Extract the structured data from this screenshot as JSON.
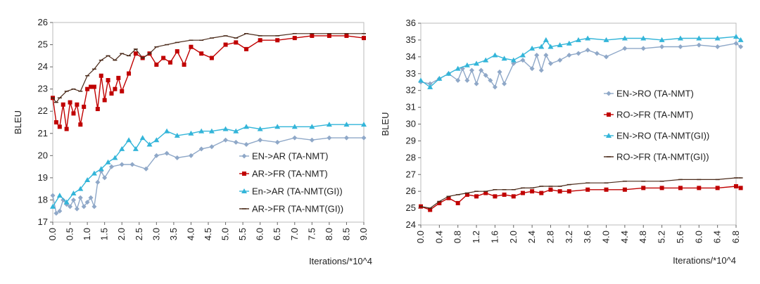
{
  "chart_data": [
    {
      "type": "line",
      "xlabel": "Iterations/*10^4",
      "ylabel": "BLEU",
      "ylim": [
        17,
        26
      ],
      "xlim": [
        0,
        9
      ],
      "xticks": [
        "0.0",
        "0.5",
        "1.0",
        "1.5",
        "2.0",
        "2.5",
        "3.0",
        "3.5",
        "4.0",
        "4.5",
        "5.0",
        "5.5",
        "6.0",
        "6.5",
        "7.0",
        "7.5",
        "8.0",
        "8.5",
        "9.0"
      ],
      "yticks": [
        "17",
        "18",
        "19",
        "20",
        "21",
        "22",
        "23",
        "24",
        "25",
        "26"
      ],
      "legend_position": "bottom-right",
      "grid": false,
      "series": [
        {
          "name": "EN->AR (TA-NMT)",
          "color": "#8fa8c8",
          "marker": "diamond",
          "x": [
            0.0,
            0.1,
            0.2,
            0.3,
            0.4,
            0.5,
            0.6,
            0.7,
            0.8,
            0.9,
            1.0,
            1.1,
            1.2,
            1.3,
            1.4,
            1.5,
            1.7,
            2.0,
            2.3,
            2.7,
            3.0,
            3.3,
            3.6,
            4.0,
            4.3,
            4.6,
            5.0,
            5.3,
            5.6,
            6.0,
            6.5,
            7.0,
            7.5,
            8.0,
            8.5,
            9.0
          ],
          "y": [
            18.2,
            17.4,
            17.5,
            18.0,
            17.8,
            17.7,
            18.0,
            17.6,
            18.1,
            17.7,
            17.9,
            18.1,
            17.7,
            18.8,
            19.3,
            19.0,
            19.5,
            19.6,
            19.6,
            19.4,
            20.0,
            20.1,
            19.9,
            20.0,
            20.3,
            20.4,
            20.7,
            20.6,
            20.5,
            20.7,
            20.6,
            20.8,
            20.7,
            20.8,
            20.8,
            20.8
          ]
        },
        {
          "name": "AR->FR (TA-NMT)",
          "color": "#c00000",
          "marker": "square",
          "x": [
            0.0,
            0.1,
            0.2,
            0.3,
            0.4,
            0.5,
            0.6,
            0.7,
            0.8,
            0.9,
            1.0,
            1.1,
            1.2,
            1.3,
            1.4,
            1.5,
            1.6,
            1.7,
            1.8,
            1.9,
            2.0,
            2.2,
            2.4,
            2.6,
            2.8,
            3.0,
            3.2,
            3.4,
            3.6,
            3.8,
            4.0,
            4.3,
            4.6,
            5.0,
            5.3,
            5.6,
            6.0,
            6.5,
            7.0,
            7.5,
            8.0,
            8.5,
            9.0
          ],
          "y": [
            22.6,
            21.5,
            21.3,
            22.3,
            21.2,
            22.4,
            21.9,
            22.3,
            21.4,
            22.2,
            23.0,
            23.1,
            23.1,
            22.1,
            23.6,
            22.5,
            23.4,
            22.8,
            23.0,
            23.5,
            22.9,
            23.7,
            24.6,
            24.4,
            24.6,
            24.1,
            24.4,
            24.2,
            24.7,
            24.1,
            24.9,
            24.6,
            24.4,
            25.0,
            25.1,
            24.8,
            25.2,
            25.2,
            25.3,
            25.4,
            25.4,
            25.4,
            25.3
          ]
        },
        {
          "name": "En->AR (TA-NMT(GI))",
          "color": "#33b5d9",
          "marker": "triangle",
          "x": [
            0.0,
            0.2,
            0.4,
            0.6,
            0.8,
            1.0,
            1.2,
            1.4,
            1.6,
            1.8,
            2.0,
            2.2,
            2.4,
            2.6,
            2.8,
            3.0,
            3.3,
            3.6,
            4.0,
            4.3,
            4.6,
            5.0,
            5.3,
            5.6,
            6.0,
            6.5,
            7.0,
            7.5,
            8.0,
            8.5,
            9.0
          ],
          "y": [
            17.7,
            18.2,
            17.9,
            18.3,
            18.5,
            18.9,
            19.2,
            19.4,
            19.7,
            19.9,
            20.3,
            20.7,
            20.3,
            20.8,
            20.5,
            20.7,
            21.1,
            20.9,
            21.0,
            21.1,
            21.1,
            21.2,
            21.1,
            21.3,
            21.2,
            21.3,
            21.3,
            21.3,
            21.4,
            21.4,
            21.4
          ]
        },
        {
          "name": "AR->FR (TA-NMT(GI))",
          "color": "#4a2a1a",
          "marker": "dash",
          "x": [
            0.0,
            0.1,
            0.2,
            0.4,
            0.6,
            0.8,
            1.0,
            1.2,
            1.4,
            1.6,
            1.8,
            2.0,
            2.2,
            2.4,
            2.6,
            2.8,
            3.0,
            3.3,
            3.6,
            4.0,
            4.3,
            4.6,
            5.0,
            5.3,
            5.6,
            6.0,
            6.5,
            7.0,
            7.5,
            8.0,
            8.5,
            9.0
          ],
          "y": [
            22.6,
            22.4,
            22.6,
            22.9,
            23.0,
            22.9,
            23.6,
            23.9,
            24.3,
            24.5,
            24.3,
            24.6,
            24.5,
            24.8,
            24.4,
            24.6,
            24.9,
            25.0,
            25.1,
            25.2,
            25.2,
            25.3,
            25.4,
            25.3,
            25.5,
            25.4,
            25.4,
            25.5,
            25.5,
            25.5,
            25.5,
            25.5
          ]
        }
      ]
    },
    {
      "type": "line",
      "xlabel": "Iterations/*10^4",
      "ylabel": "BLEU",
      "ylim": [
        24,
        36
      ],
      "xlim": [
        0,
        6.8
      ],
      "xticks": [
        "0.0",
        "0.4",
        "0.8",
        "1.2",
        "1.6",
        "2.0",
        "2.4",
        "2.8",
        "3.2",
        "3.6",
        "4.0",
        "4.4",
        "4.8",
        "5.2",
        "5.6",
        "6.0",
        "6.4",
        "6.8"
      ],
      "yticks": [
        "24",
        "25",
        "26",
        "27",
        "28",
        "29",
        "30",
        "31",
        "32",
        "33",
        "34",
        "35",
        "36"
      ],
      "legend_position": "right",
      "grid": false,
      "series": [
        {
          "name": "EN->RO (TA-NMT)",
          "color": "#8fa8c8",
          "marker": "diamond",
          "x": [
            0.0,
            0.2,
            0.4,
            0.6,
            0.8,
            0.9,
            1.0,
            1.1,
            1.2,
            1.3,
            1.4,
            1.5,
            1.6,
            1.7,
            1.8,
            2.0,
            2.2,
            2.4,
            2.5,
            2.6,
            2.7,
            2.8,
            3.0,
            3.2,
            3.4,
            3.6,
            3.8,
            4.0,
            4.4,
            4.8,
            5.2,
            5.6,
            6.0,
            6.4,
            6.8,
            6.9
          ],
          "y": [
            32.5,
            32.4,
            32.7,
            33.0,
            32.6,
            33.3,
            32.6,
            33.2,
            32.4,
            33.2,
            32.9,
            32.6,
            32.2,
            33.1,
            32.4,
            33.6,
            33.8,
            33.3,
            34.1,
            33.2,
            34.1,
            33.6,
            33.8,
            34.1,
            34.2,
            34.4,
            34.2,
            34.0,
            34.5,
            34.5,
            34.6,
            34.6,
            34.7,
            34.6,
            34.8,
            34.6
          ]
        },
        {
          "name": "RO->FR (TA-NMT)",
          "color": "#c00000",
          "marker": "square",
          "x": [
            0.0,
            0.2,
            0.4,
            0.6,
            0.8,
            1.0,
            1.2,
            1.4,
            1.6,
            1.8,
            2.0,
            2.2,
            2.4,
            2.6,
            2.8,
            3.0,
            3.2,
            3.6,
            4.0,
            4.4,
            4.8,
            5.2,
            5.6,
            6.0,
            6.4,
            6.8,
            6.9
          ],
          "y": [
            25.1,
            24.9,
            25.3,
            25.6,
            25.3,
            25.8,
            25.7,
            25.9,
            25.7,
            25.8,
            25.7,
            25.9,
            26.0,
            25.9,
            26.1,
            26.0,
            26.0,
            26.1,
            26.1,
            26.1,
            26.2,
            26.2,
            26.2,
            26.2,
            26.2,
            26.3,
            26.2
          ]
        },
        {
          "name": "EN->RO (TA-NMT(GI))",
          "color": "#33b5d9",
          "marker": "triangle",
          "x": [
            0.0,
            0.2,
            0.4,
            0.6,
            0.8,
            1.0,
            1.2,
            1.4,
            1.6,
            1.8,
            2.0,
            2.2,
            2.4,
            2.6,
            2.7,
            2.8,
            3.0,
            3.2,
            3.4,
            3.6,
            4.0,
            4.4,
            4.8,
            5.2,
            5.6,
            6.0,
            6.4,
            6.8,
            6.9
          ],
          "y": [
            32.6,
            32.2,
            32.7,
            33.0,
            33.3,
            33.5,
            33.6,
            33.8,
            34.1,
            33.9,
            33.8,
            34.1,
            34.5,
            34.6,
            35.0,
            34.6,
            34.7,
            34.8,
            35.0,
            35.1,
            35.0,
            35.1,
            35.1,
            35.0,
            35.1,
            35.1,
            35.1,
            35.2,
            35.0
          ]
        },
        {
          "name": "RO->FR (TA-NMT(GI))",
          "color": "#4a2a1a",
          "marker": "dash",
          "x": [
            0.0,
            0.2,
            0.4,
            0.6,
            0.8,
            1.0,
            1.2,
            1.4,
            1.6,
            1.8,
            2.0,
            2.2,
            2.4,
            2.6,
            2.8,
            3.0,
            3.2,
            3.6,
            4.0,
            4.4,
            4.8,
            5.2,
            5.6,
            6.0,
            6.4,
            6.8,
            6.9
          ],
          "y": [
            25.1,
            25.0,
            25.4,
            25.7,
            25.8,
            25.9,
            26.0,
            26.0,
            26.1,
            26.1,
            26.1,
            26.2,
            26.2,
            26.3,
            26.3,
            26.3,
            26.4,
            26.5,
            26.5,
            26.6,
            26.6,
            26.6,
            26.7,
            26.7,
            26.7,
            26.8,
            26.8
          ]
        }
      ]
    }
  ]
}
